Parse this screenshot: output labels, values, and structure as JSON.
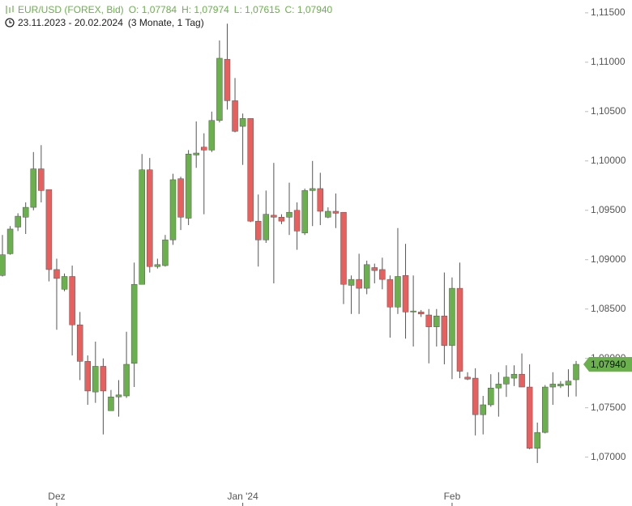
{
  "chart_data": {
    "type": "candlestick",
    "title": "EUR/USD (FOREX, Bid)",
    "header_values": [
      "O: 1,07784",
      "H: 1,07974",
      "L: 1,07615",
      "C: 1,07940"
    ],
    "subtitle": "23.11.2023 - 20.02.2024",
    "period": "(3 Monate, 1 Tag)",
    "categories": [
      null,
      null,
      null,
      null,
      null,
      null,
      null,
      "Dez",
      null,
      null,
      null,
      null,
      null,
      null,
      null,
      null,
      null,
      null,
      null,
      null,
      null,
      null,
      null,
      null,
      null,
      null,
      null,
      null,
      null,
      null,
      null,
      "Jan '24",
      null,
      null,
      null,
      null,
      null,
      null,
      null,
      null,
      null,
      null,
      null,
      null,
      null,
      null,
      null,
      null,
      null,
      null,
      null,
      null,
      null,
      null,
      null,
      null,
      null,
      null,
      "Feb",
      null,
      null,
      null,
      null,
      null,
      null,
      null,
      null,
      null,
      null,
      null,
      null,
      null,
      null,
      null,
      null
    ],
    "open": [
      1.0884,
      1.0906,
      1.0933,
      1.0943,
      1.0953,
      1.0992,
      1.0971,
      1.089,
      1.087,
      1.0883,
      1.0834,
      1.0797,
      1.0766,
      1.0792,
      1.0747,
      1.0761,
      1.0762,
      1.0795,
      1.0875,
      1.0991,
      1.0893,
      1.0894,
      1.092,
      1.0982,
      1.0942,
      1.1006,
      1.1014,
      1.1011,
      1.1041,
      1.1103,
      1.1061,
      1.1035,
      1.1043,
      1.0939,
      1.092,
      1.0945,
      1.0943,
      1.0943,
      1.095,
      1.0927,
      1.097,
      1.0972,
      1.0943,
      1.0949,
      1.0948,
      1.0874,
      1.088,
      1.0871,
      1.0892,
      1.089,
      1.088,
      1.0852,
      1.0884,
      1.0847,
      1.0847,
      1.0844,
      1.0832,
      1.0843,
      1.0813,
      1.0871,
      1.0781,
      1.078,
      1.0743,
      1.0753,
      1.077,
      1.0774,
      1.078,
      1.0784,
      1.0771,
      1.0709,
      1.0725,
      1.0771,
      1.0772,
      1.0773,
      1.07784
    ],
    "high": [
      1.0925,
      1.0934,
      1.0947,
      1.0958,
      1.1009,
      1.1016,
      1.0971,
      1.0901,
      1.0886,
      1.0894,
      1.0847,
      1.0803,
      1.0817,
      1.08,
      1.0768,
      1.0778,
      1.0827,
      1.0897,
      1.1007,
      1.1003,
      1.0901,
      1.0925,
      1.0987,
      1.0984,
      1.1011,
      1.104,
      1.1028,
      1.105,
      1.1122,
      1.1139,
      1.1084,
      1.1048,
      1.1043,
      1.0966,
      1.097,
      1.0998,
      1.0946,
      1.0978,
      1.0958,
      1.0972,
      1.1,
      1.0988,
      1.0953,
      1.0967,
      1.0948,
      1.0884,
      1.0906,
      1.0899,
      1.0896,
      1.0902,
      1.0884,
      1.0932,
      1.0916,
      1.0884,
      1.0849,
      1.085,
      1.085,
      1.0887,
      1.0882,
      1.0897,
      1.0786,
      1.079,
      1.0762,
      1.0784,
      1.0786,
      1.0793,
      1.0793,
      1.0805,
      1.0794,
      1.0735,
      1.0773,
      1.0786,
      1.0777,
      1.0789,
      1.07974
    ],
    "low": [
      1.0883,
      1.0905,
      1.0929,
      1.0926,
      1.095,
      1.0958,
      1.0878,
      1.0829,
      1.0868,
      1.0803,
      1.0778,
      1.0753,
      1.0755,
      1.0723,
      1.0747,
      1.0741,
      1.076,
      1.0771,
      1.0875,
      1.0887,
      1.0891,
      1.0893,
      1.0915,
      1.093,
      1.0935,
      1.0993,
      1.0946,
      1.1009,
      1.1039,
      1.1052,
      1.1029,
      1.0996,
      1.0938,
      1.0893,
      1.0917,
      1.0876,
      1.0936,
      1.0925,
      1.091,
      1.0925,
      1.0934,
      1.0935,
      1.0942,
      1.0932,
      1.0855,
      1.0845,
      1.0845,
      1.0865,
      1.0876,
      1.087,
      1.0821,
      1.0845,
      1.082,
      1.0812,
      1.0842,
      1.0795,
      1.0812,
      1.0794,
      1.0779,
      1.078,
      1.0778,
      1.0722,
      1.0723,
      1.0751,
      1.0741,
      1.0761,
      1.0772,
      1.0771,
      1.0708,
      1.0694,
      1.0724,
      1.0753,
      1.077,
      1.0761,
      1.07615
    ],
    "close": [
      1.0905,
      1.0931,
      1.0944,
      1.0953,
      1.0992,
      1.097,
      1.089,
      1.0881,
      1.0883,
      1.0834,
      1.0797,
      1.0767,
      1.0792,
      1.0767,
      1.0761,
      1.0763,
      1.0794,
      1.0875,
      1.0991,
      1.0893,
      1.0895,
      1.092,
      1.0981,
      1.0943,
      1.1007,
      1.1008,
      1.1011,
      1.1041,
      1.1104,
      1.1061,
      1.103,
      1.1043,
      1.0939,
      1.092,
      1.0946,
      1.0943,
      1.0939,
      1.0948,
      1.0929,
      1.097,
      1.0972,
      1.0949,
      1.0949,
      1.0947,
      1.0875,
      1.088,
      1.0871,
      1.0895,
      1.0889,
      1.088,
      1.0852,
      1.0883,
      1.0847,
      1.0848,
      1.0845,
      1.0832,
      1.0843,
      1.0813,
      1.0871,
      1.0787,
      1.0779,
      1.0743,
      1.0753,
      1.077,
      1.0774,
      1.0781,
      1.0784,
      1.0771,
      1.0709,
      1.0725,
      1.0771,
      1.0774,
      1.0774,
      1.0777,
      1.0794
    ],
    "up_color": "#6ab04c",
    "down_color": "#e8605e",
    "ylim": [
      1.0671,
      1.1163
    ],
    "yticks": [
      {
        "value": 1.07,
        "label": "1,07000"
      },
      {
        "value": 1.075,
        "label": "1,07500"
      },
      {
        "value": 1.08,
        "label": "1,08000"
      },
      {
        "value": 1.085,
        "label": "1,08500"
      },
      {
        "value": 1.09,
        "label": "1,09000"
      },
      {
        "value": 1.095,
        "label": "1,09500"
      },
      {
        "value": 1.1,
        "label": "1,10000"
      },
      {
        "value": 1.105,
        "label": "1,10500"
      },
      {
        "value": 1.11,
        "label": "1,11000"
      },
      {
        "value": 1.115,
        "label": "1,11500"
      }
    ],
    "last_price": {
      "value": 1.0794,
      "label": "1,07940"
    }
  }
}
